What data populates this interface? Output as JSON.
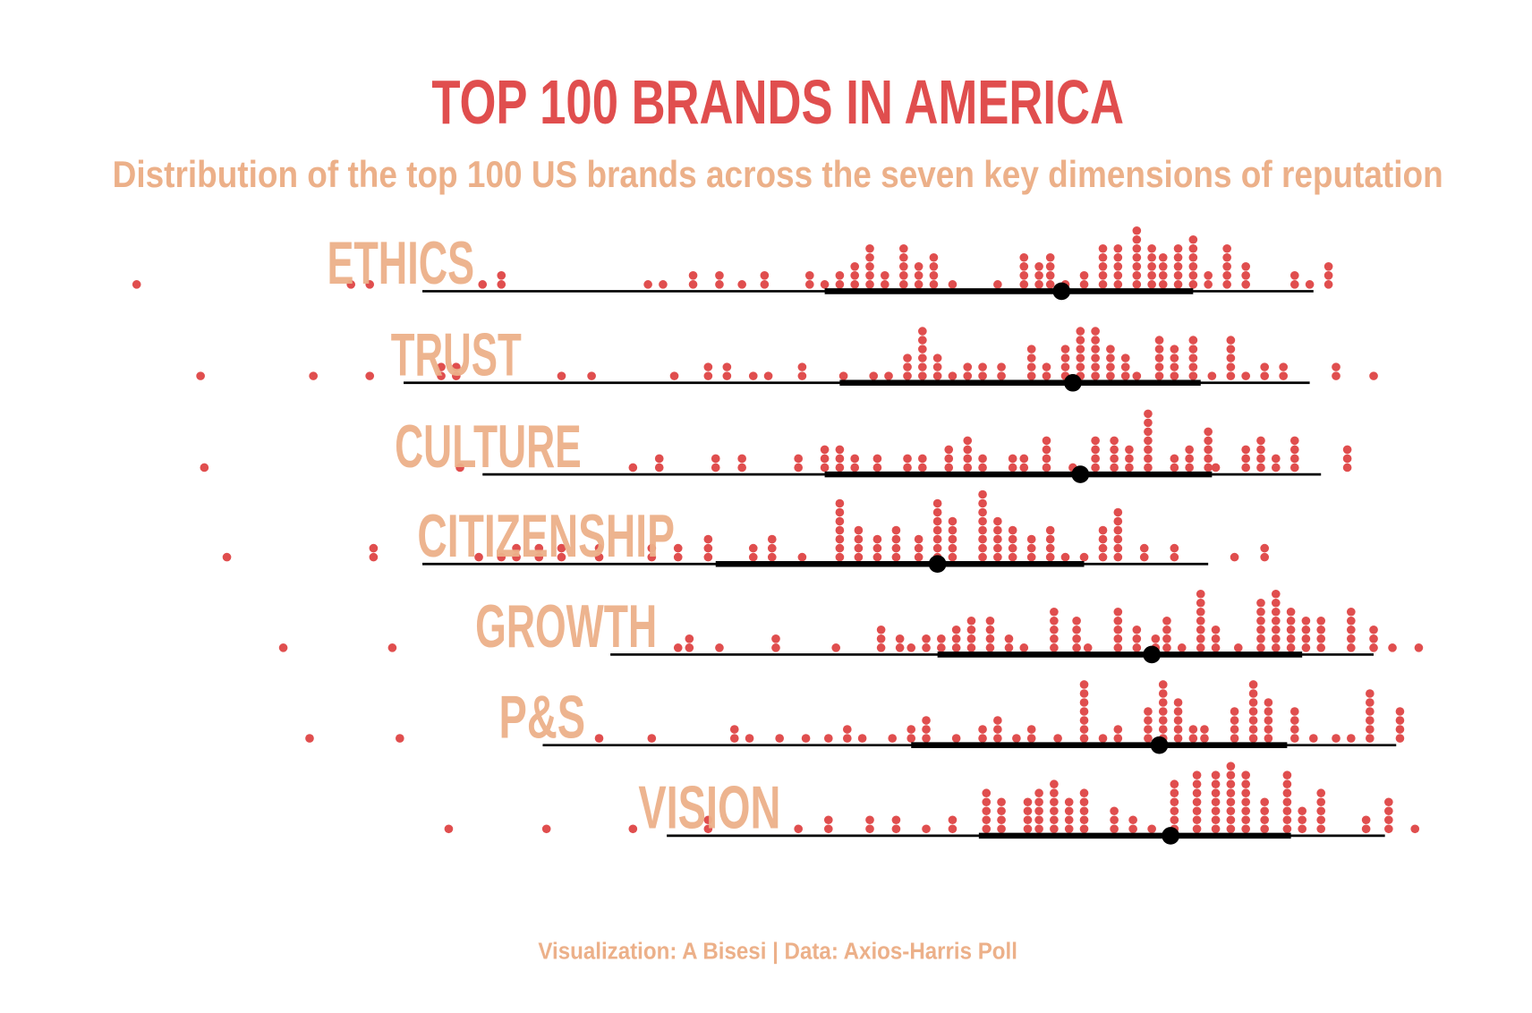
{
  "chart_data": {
    "type": "dotplot",
    "title": "TOP 100 BRANDS IN AMERICA",
    "subtitle": "Distribution of the top 100 US brands across the seven key dimensions of reputation",
    "caption": "Visualization: A Bisesi | Data: Axios-Harris Poll",
    "xlim": [
      50,
      85
    ],
    "dot_color": "#e04e4e",
    "title_color": "#e04e4e",
    "label_color": "#ecb089",
    "interval_color": "#000000",
    "rows": [
      {
        "name": "ETHICS",
        "x": [
          50.5,
          56.2,
          56.7,
          59.7,
          60.2,
          64.1,
          64.5,
          65.3,
          66.0,
          66.6,
          67.2,
          68.4,
          68.8,
          69.2,
          69.6,
          70.0,
          70.4,
          70.9,
          71.3,
          71.7,
          72.2,
          73.4,
          74.1,
          74.5,
          74.8,
          75.2,
          75.7,
          76.2,
          76.6,
          77.1,
          77.5,
          77.8,
          78.2,
          78.6,
          79.0,
          79.5,
          80.0,
          81.3,
          81.7,
          82.2
        ],
        "counts": [
          1,
          1,
          1,
          1,
          2,
          1,
          1,
          2,
          2,
          1,
          2,
          2,
          1,
          2,
          3,
          5,
          2,
          5,
          3,
          4,
          1,
          1,
          4,
          3,
          4,
          1,
          2,
          5,
          5,
          7,
          5,
          4,
          5,
          6,
          2,
          5,
          3,
          2,
          1,
          3
        ],
        "median": 75.1,
        "inner_interval": [
          68.8,
          78.6
        ],
        "outer_interval": [
          58.1,
          81.8
        ]
      },
      {
        "name": "TRUST",
        "x": [
          52.2,
          55.2,
          56.7,
          58.6,
          59.0,
          61.8,
          62.6,
          64.8,
          65.7,
          66.2,
          66.9,
          67.3,
          68.2,
          69.3,
          70.1,
          70.5,
          71.0,
          71.4,
          71.8,
          72.2,
          72.6,
          73.0,
          73.5,
          74.3,
          74.7,
          75.2,
          75.6,
          76.0,
          76.4,
          76.8,
          77.1,
          77.7,
          78.1,
          78.6,
          79.1,
          79.6,
          80.0,
          80.5,
          81.0,
          82.4,
          83.4
        ],
        "counts": [
          1,
          1,
          1,
          2,
          2,
          1,
          1,
          1,
          2,
          2,
          1,
          1,
          2,
          1,
          1,
          1,
          3,
          6,
          3,
          1,
          2,
          2,
          2,
          4,
          2,
          4,
          6,
          6,
          4,
          3,
          1,
          5,
          4,
          5,
          1,
          5,
          1,
          2,
          2,
          2,
          1
        ],
        "median": 75.4,
        "inner_interval": [
          69.2,
          78.8
        ],
        "outer_interval": [
          57.6,
          81.7
        ]
      },
      {
        "name": "CULTURE",
        "x": [
          52.3,
          59.1,
          63.7,
          64.4,
          65.9,
          66.6,
          68.1,
          68.8,
          69.2,
          69.6,
          70.2,
          71.0,
          71.4,
          72.1,
          72.6,
          73.0,
          73.8,
          74.1,
          74.7,
          75.4,
          76.0,
          76.5,
          76.9,
          77.4,
          78.1,
          78.5,
          79.0,
          79.2,
          80.0,
          80.4,
          80.8,
          81.3,
          82.7
        ],
        "counts": [
          1,
          1,
          1,
          2,
          2,
          2,
          2,
          3,
          3,
          2,
          2,
          2,
          2,
          3,
          4,
          2,
          2,
          2,
          4,
          1,
          4,
          4,
          3,
          7,
          2,
          3,
          5,
          1,
          3,
          4,
          2,
          4,
          3
        ],
        "median": 75.6,
        "inner_interval": [
          68.8,
          79.1
        ],
        "outer_interval": [
          59.7,
          82.0
        ]
      },
      {
        "name": "CITIZENSHIP",
        "x": [
          52.9,
          56.8,
          59.6,
          60.2,
          60.6,
          61.2,
          61.8,
          62.8,
          64.2,
          64.9,
          65.7,
          66.9,
          67.4,
          68.2,
          69.2,
          69.7,
          70.2,
          70.7,
          71.3,
          71.8,
          72.2,
          73.0,
          73.4,
          73.8,
          74.3,
          74.8,
          75.2,
          75.7,
          76.2,
          76.6,
          77.3,
          78.1,
          79.7,
          80.5
        ],
        "counts": [
          1,
          2,
          1,
          1,
          2,
          2,
          2,
          2,
          2,
          2,
          3,
          2,
          3,
          1,
          7,
          4,
          3,
          4,
          3,
          7,
          5,
          8,
          5,
          4,
          3,
          4,
          1,
          1,
          4,
          6,
          2,
          2,
          1,
          2
        ],
        "median": 71.8,
        "inner_interval": [
          65.9,
          75.7
        ],
        "outer_interval": [
          58.1,
          79.0
        ]
      },
      {
        "name": "GROWTH",
        "x": [
          54.4,
          57.3,
          64.9,
          65.2,
          66.0,
          67.5,
          69.1,
          70.3,
          70.8,
          71.1,
          71.5,
          71.9,
          72.3,
          72.7,
          73.2,
          73.7,
          74.1,
          74.9,
          75.5,
          75.8,
          76.6,
          77.1,
          77.6,
          77.9,
          78.3,
          78.8,
          79.2,
          79.8,
          80.4,
          80.8,
          81.2,
          81.6,
          82.0,
          82.8,
          83.4,
          83.9,
          84.6
        ],
        "counts": [
          1,
          1,
          1,
          2,
          1,
          2,
          1,
          3,
          2,
          1,
          2,
          2,
          3,
          4,
          4,
          2,
          1,
          5,
          4,
          1,
          5,
          3,
          2,
          4,
          1,
          7,
          3,
          1,
          6,
          7,
          5,
          4,
          4,
          5,
          3,
          1,
          1
        ],
        "median": 77.5,
        "inner_interval": [
          71.8,
          81.5
        ],
        "outer_interval": [
          63.1,
          83.4
        ]
      },
      {
        "name": "P&S",
        "x": [
          55.1,
          57.5,
          62.8,
          64.2,
          66.4,
          66.8,
          67.6,
          68.3,
          68.9,
          69.4,
          69.8,
          70.6,
          71.1,
          71.5,
          72.3,
          73.0,
          73.4,
          73.9,
          74.3,
          75.0,
          75.7,
          76.2,
          76.6,
          77.4,
          77.8,
          78.2,
          78.6,
          78.9,
          79.7,
          80.2,
          80.6,
          81.3,
          81.8,
          82.4,
          82.8,
          83.3,
          84.1
        ],
        "counts": [
          1,
          1,
          1,
          1,
          2,
          1,
          1,
          1,
          1,
          2,
          1,
          1,
          2,
          3,
          1,
          2,
          3,
          1,
          2,
          1,
          7,
          1,
          2,
          4,
          7,
          5,
          2,
          2,
          4,
          7,
          5,
          4,
          1,
          1,
          1,
          6,
          4
        ],
        "median": 77.7,
        "inner_interval": [
          71.1,
          81.1
        ],
        "outer_interval": [
          61.3,
          84.0
        ]
      },
      {
        "name": "VISION",
        "x": [
          58.8,
          61.4,
          63.7,
          65.7,
          68.1,
          68.9,
          70.0,
          70.7,
          71.5,
          72.2,
          73.1,
          73.5,
          74.2,
          74.5,
          74.9,
          75.3,
          75.7,
          76.5,
          77.0,
          77.5,
          78.1,
          78.7,
          79.2,
          79.6,
          80.0,
          80.5,
          81.1,
          81.5,
          82.0,
          83.2,
          83.8,
          84.5
        ],
        "counts": [
          1,
          1,
          1,
          2,
          1,
          2,
          2,
          2,
          1,
          2,
          5,
          4,
          4,
          5,
          6,
          4,
          5,
          3,
          2,
          1,
          6,
          7,
          7,
          8,
          7,
          4,
          7,
          3,
          5,
          2,
          4,
          1
        ],
        "median": 78.0,
        "inner_interval": [
          72.9,
          81.2
        ],
        "outer_interval": [
          64.6,
          83.7
        ]
      }
    ]
  }
}
